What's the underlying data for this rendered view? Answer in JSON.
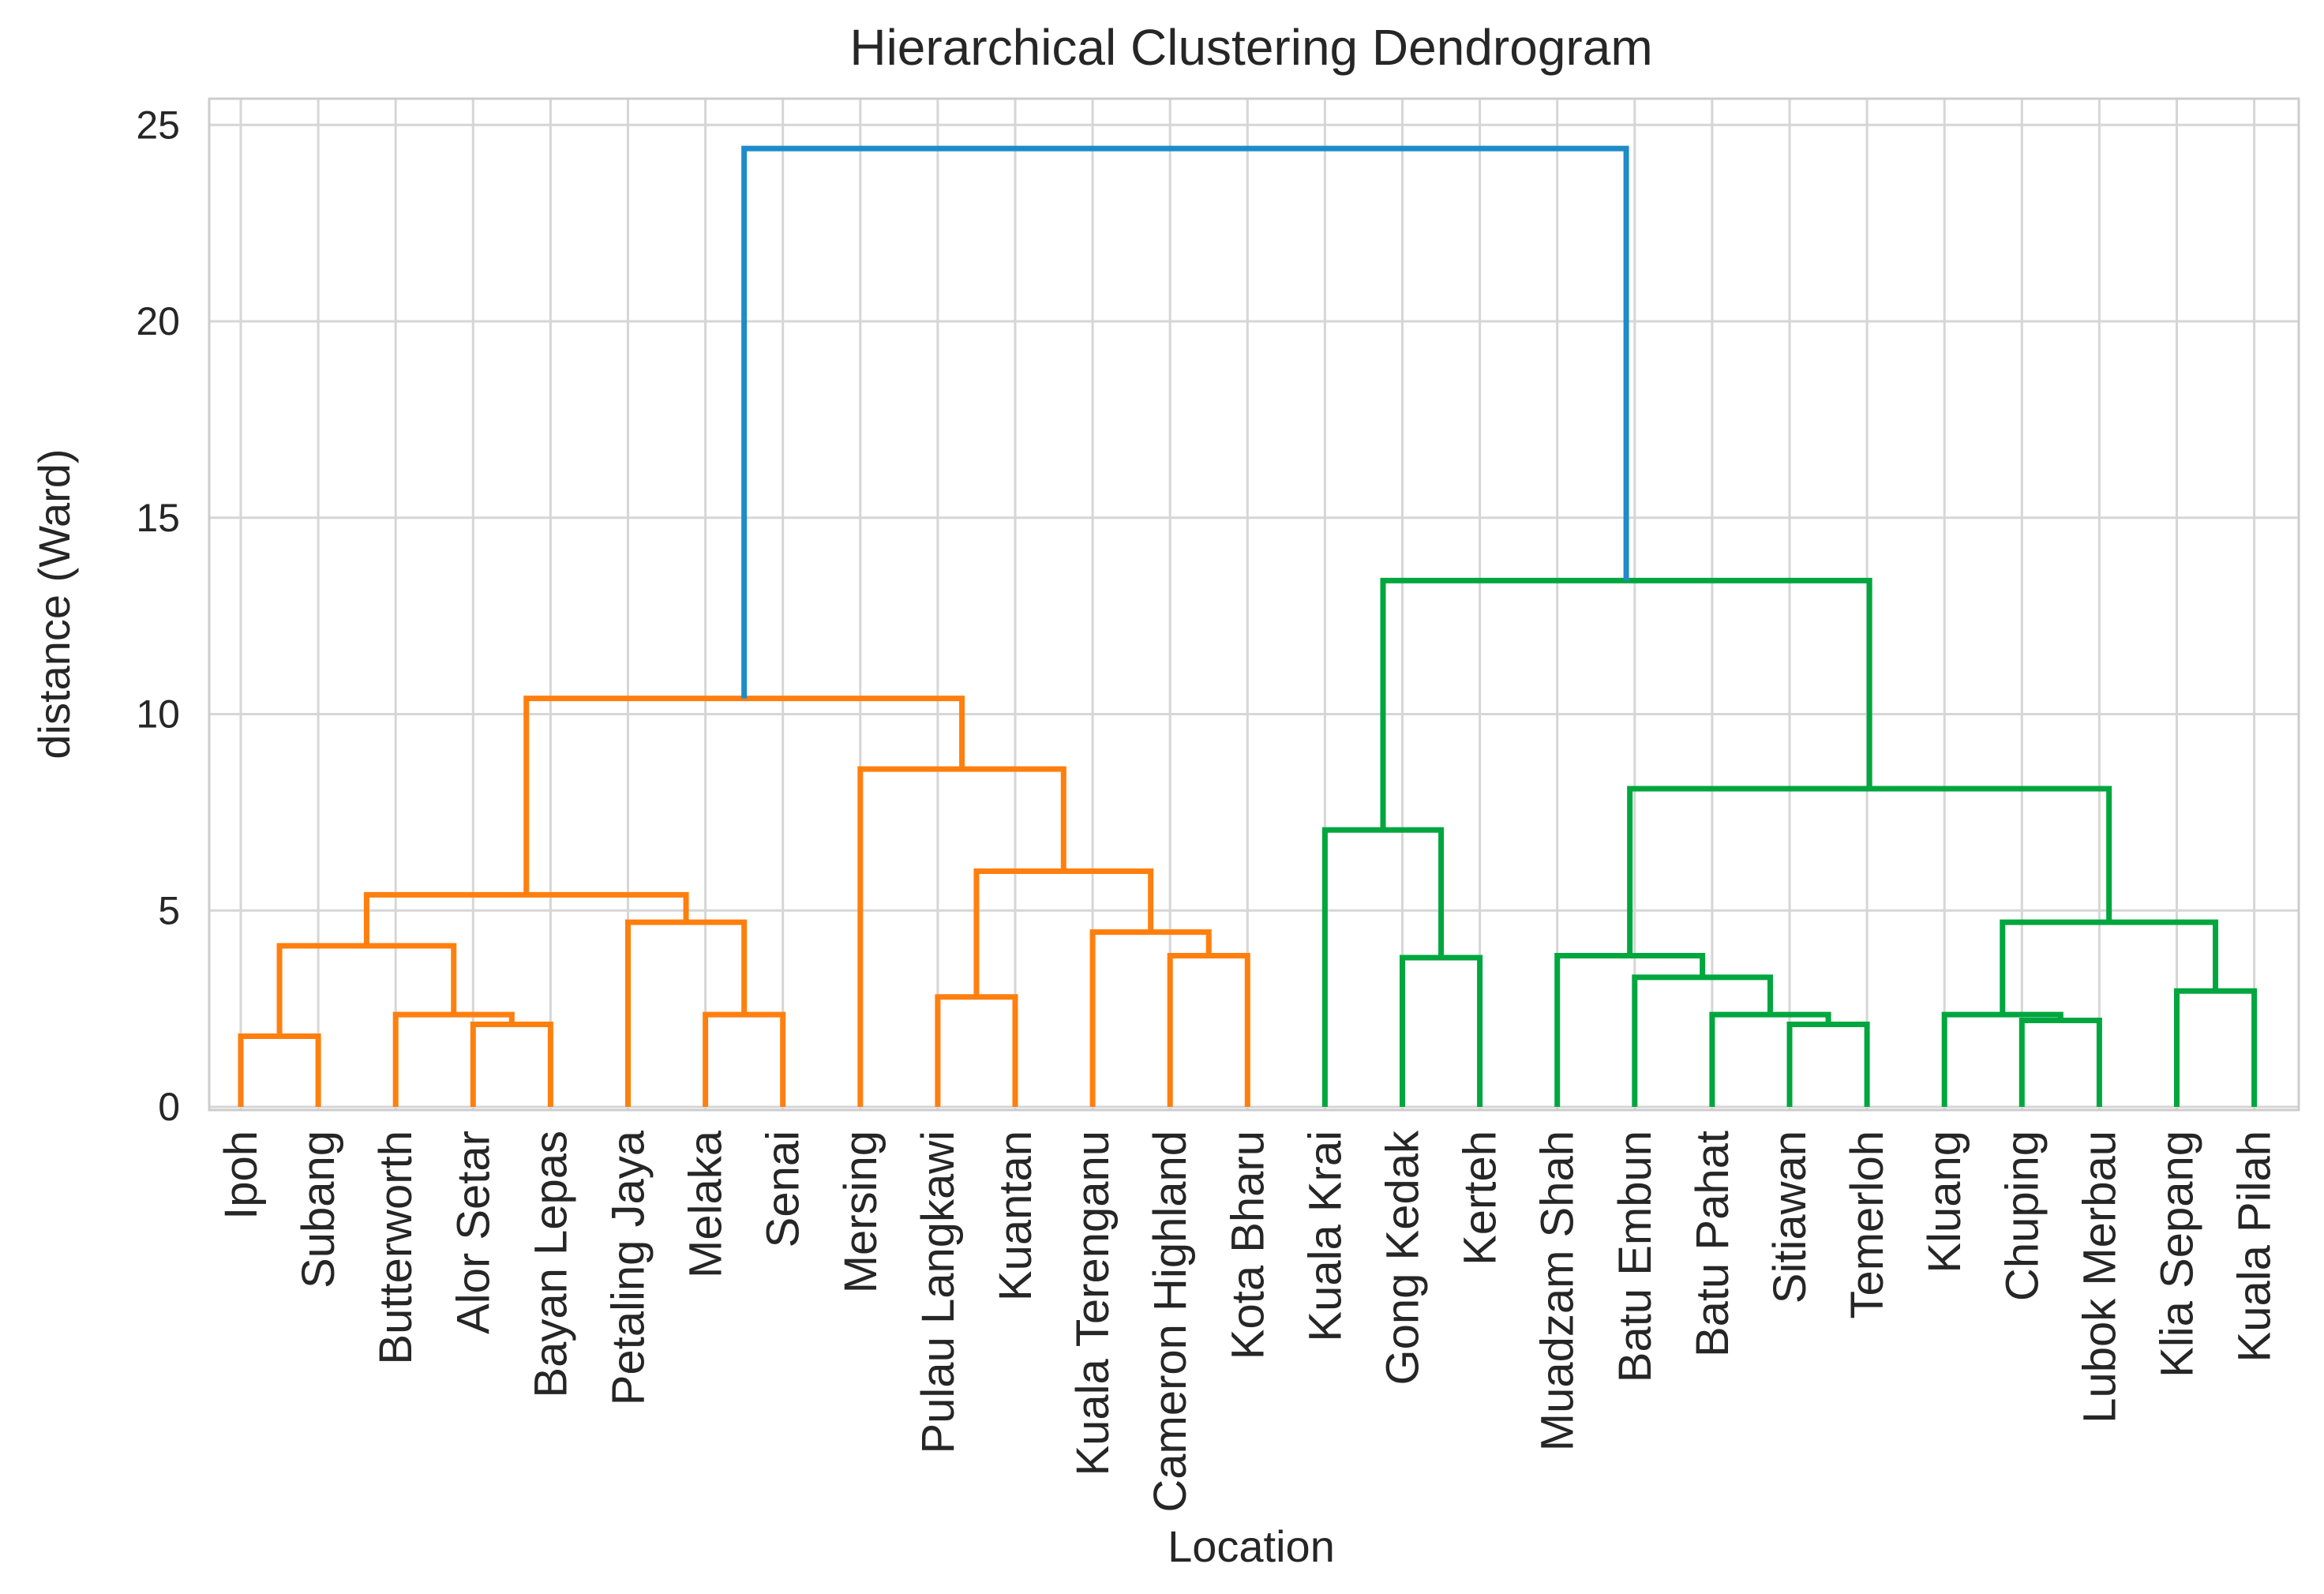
{
  "chart_data": {
    "type": "dendrogram",
    "title": "Hierarchical Clustering Dendrogram",
    "xlabel": "Location",
    "ylabel": "distance (Ward)",
    "ylim": [
      0,
      26
    ],
    "yticks": [
      0,
      5,
      10,
      15,
      20,
      25
    ],
    "grid": true,
    "leaves": [
      "Ipoh",
      "Subang",
      "Butterworth",
      "Alor Setar",
      "Bayan Lepas",
      "Petaling Jaya",
      "Melaka",
      "Senai",
      "Mersing",
      "Pulau Langkawi",
      "Kuantan",
      "Kuala Terenganu",
      "Cameron Highland",
      "Kota Bharu",
      "Kuala Krai",
      "Gong Kedak",
      "Kerteh",
      "Muadzam Shah",
      "Batu Embun",
      "Batu Pahat",
      "Sitiawan",
      "Temerloh",
      "Kluang",
      "Chuping",
      "Lubok Merbau",
      "Klia Sepang",
      "Kuala Pilah"
    ],
    "colors": {
      "cluster_1": "#ff7f0e",
      "cluster_2": "#00a63e",
      "root": "#1f8bc9",
      "grid": "#d6d6d6",
      "spine": "#cccccc",
      "text": "#262626"
    },
    "merges": [
      {
        "id": "m1",
        "left": "Ipoh",
        "right": "Subang",
        "distance": 1.8,
        "color": "cluster_1"
      },
      {
        "id": "m2",
        "left": "Bayan Lepas",
        "right": "Alor Setar",
        "distance": 2.1,
        "color": "cluster_1"
      },
      {
        "id": "m3",
        "left": "Butterworth",
        "right": "m2",
        "distance": 2.35,
        "color": "cluster_1"
      },
      {
        "id": "m4",
        "left": "m1",
        "right": "m3",
        "distance": 4.1,
        "color": "cluster_1"
      },
      {
        "id": "m5",
        "left": "Melaka",
        "right": "Senai",
        "distance": 2.35,
        "color": "cluster_1"
      },
      {
        "id": "m6",
        "left": "Petaling Jaya",
        "right": "m5",
        "distance": 4.7,
        "color": "cluster_1"
      },
      {
        "id": "m7",
        "left": "m4",
        "right": "m6",
        "distance": 5.4,
        "color": "cluster_1"
      },
      {
        "id": "m8",
        "left": "Pulau Langkawi",
        "right": "Kuantan",
        "distance": 2.8,
        "color": "cluster_1"
      },
      {
        "id": "m9",
        "left": "Cameron Highland",
        "right": "Kota Bharu",
        "distance": 3.85,
        "color": "cluster_1"
      },
      {
        "id": "m10",
        "left": "Kuala Terenganu",
        "right": "m9",
        "distance": 4.45,
        "color": "cluster_1"
      },
      {
        "id": "m11",
        "left": "m8",
        "right": "m10",
        "distance": 6.0,
        "color": "cluster_1"
      },
      {
        "id": "m12",
        "left": "Mersing",
        "right": "m11",
        "distance": 8.6,
        "color": "cluster_1"
      },
      {
        "id": "m13",
        "left": "m7",
        "right": "m12",
        "distance": 10.4,
        "color": "cluster_1"
      },
      {
        "id": "m14",
        "left": "Gong Kedak",
        "right": "Kerteh",
        "distance": 3.8,
        "color": "cluster_2"
      },
      {
        "id": "m15",
        "left": "Kuala Krai",
        "right": "m14",
        "distance": 7.05,
        "color": "cluster_2"
      },
      {
        "id": "m16",
        "left": "Sitiawan",
        "right": "Temerloh",
        "distance": 2.1,
        "color": "cluster_2"
      },
      {
        "id": "m17",
        "left": "Batu Pahat",
        "right": "m16",
        "distance": 2.35,
        "color": "cluster_2"
      },
      {
        "id": "m18",
        "left": "Batu Embun",
        "right": "m17",
        "distance": 3.3,
        "color": "cluster_2"
      },
      {
        "id": "m19",
        "left": "Muadzam Shah",
        "right": "m18",
        "distance": 3.85,
        "color": "cluster_2"
      },
      {
        "id": "m20",
        "left": "Chuping",
        "right": "Lubok Merbau",
        "distance": 2.2,
        "color": "cluster_2"
      },
      {
        "id": "m21",
        "left": "Kluang",
        "right": "m20",
        "distance": 2.35,
        "color": "cluster_2"
      },
      {
        "id": "m22",
        "left": "Klia Sepang",
        "right": "Kuala Pilah",
        "distance": 2.95,
        "color": "cluster_2"
      },
      {
        "id": "m23",
        "left": "m21",
        "right": "m22",
        "distance": 4.7,
        "color": "cluster_2"
      },
      {
        "id": "m24",
        "left": "m19",
        "right": "m23",
        "distance": 8.1,
        "color": "cluster_2"
      },
      {
        "id": "m25",
        "left": "m15",
        "right": "m24",
        "distance": 13.4,
        "color": "cluster_2"
      },
      {
        "id": "m26",
        "left": "m13",
        "right": "m25",
        "distance": 24.4,
        "color": "root"
      }
    ]
  }
}
